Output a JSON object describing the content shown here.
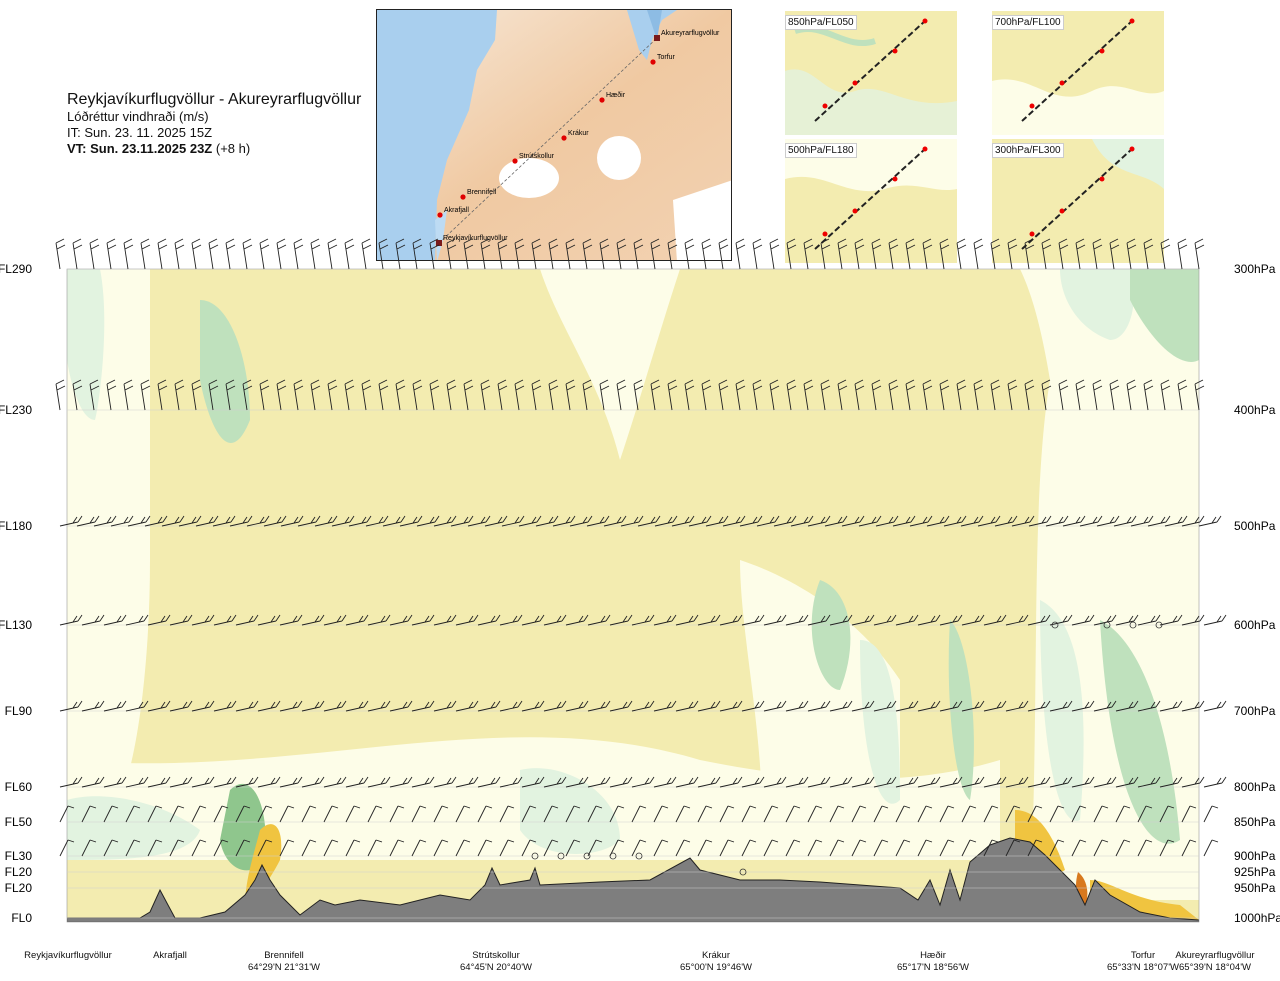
{
  "header": {
    "route_title": "Reykjavíkurflugvöllur - Akureyrarflugvöllur",
    "variable": "Lóðréttur vindhraði (m/s)",
    "issue_time": "IT: Sun. 23. 11. 2025 15Z",
    "valid_time_label": "VT: Sun. 23.11.2025 23Z",
    "valid_offset": "(+8 h)"
  },
  "route_map": {
    "waypoints": [
      {
        "name": "Akureyrarflugvöllur"
      },
      {
        "name": "Torfur"
      },
      {
        "name": "Hæðir"
      },
      {
        "name": "Krákur"
      },
      {
        "name": "Strútskollur"
      },
      {
        "name": "Brennifell"
      },
      {
        "name": "Akrafjall"
      },
      {
        "name": "Reykjavíkurflugvöllur"
      }
    ]
  },
  "insets": [
    {
      "label": "850hPa/FL050"
    },
    {
      "label": "700hPa/FL100"
    },
    {
      "label": "500hPa/FL180"
    },
    {
      "label": "300hPa/FL300"
    }
  ],
  "chart_data": {
    "type": "heatmap",
    "variable": "Lóðréttur vindhraði (m/s)",
    "levels_left": [
      {
        "label": "FL290",
        "pressure": 300
      },
      {
        "label": "FL230",
        "pressure": 400
      },
      {
        "label": "FL180",
        "pressure": 500
      },
      {
        "label": "FL130",
        "pressure": 600
      },
      {
        "label": "FL90",
        "pressure": 700
      },
      {
        "label": "FL60",
        "pressure": 800
      },
      {
        "label": "FL50",
        "pressure": 850
      },
      {
        "label": "FL30",
        "pressure": 900
      },
      {
        "label": "FL20",
        "pressure": 925
      },
      {
        "label": "FL20",
        "pressure": 950
      },
      {
        "label": "FL0",
        "pressure": 1000
      }
    ],
    "levels_right": [
      "300hPa",
      "400hPa",
      "500hPa",
      "600hPa",
      "700hPa",
      "800hPa",
      "850hPa",
      "900hPa",
      "925hPa",
      "950hPa",
      "1000hPa"
    ],
    "locations": [
      {
        "name": "Reykjavíkurflugvöllur",
        "coord": ""
      },
      {
        "name": "Akrafjall",
        "coord": ""
      },
      {
        "name": "Brennifell",
        "coord": "64°29'N 21°31'W"
      },
      {
        "name": "Strútskollur",
        "coord": "64°45'N 20°40'W"
      },
      {
        "name": "Krákur",
        "coord": "65°00'N 19°46'W"
      },
      {
        "name": "Hæðir",
        "coord": "65°17'N 18°56'W"
      },
      {
        "name": "Torfur",
        "coord": "65°33'N 18°07'W"
      },
      {
        "name": "Akureyrarflugvöllur",
        "coord": "65°39'N 18°04'W"
      }
    ],
    "colors": {
      "sinking": "#f3ecb0",
      "weak": "#fdfde8",
      "rising_light": "#e2f3e0",
      "rising_mid": "#bfe1bd",
      "rising_strong": "#8fc68d",
      "sinking_strong": "#f0c440",
      "sinking_max": "#d8791e",
      "terrain": "#7e7e7e"
    }
  }
}
